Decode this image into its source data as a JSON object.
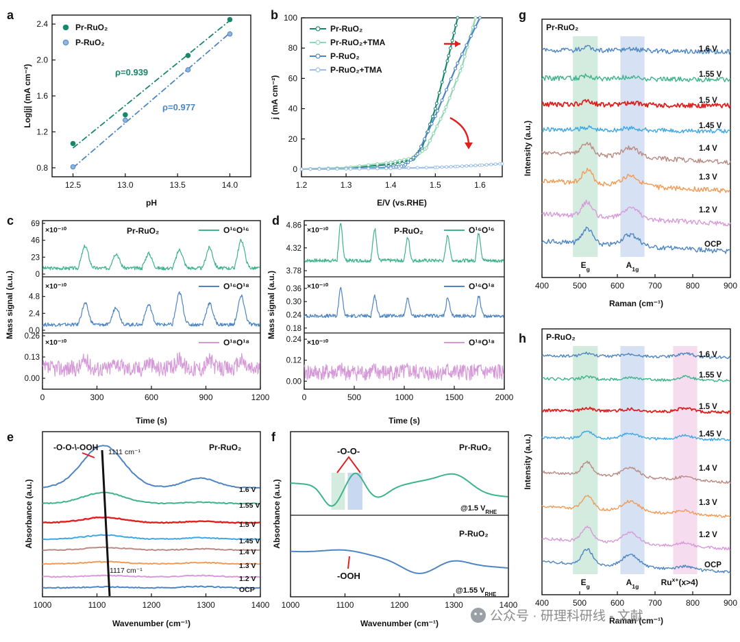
{
  "watermark": "公众号 · 研理科研线 - 文献",
  "colors": {
    "green": "#3cb38a",
    "green_dark": "#17876a",
    "green_light": "#8fd6b3",
    "blue": "#4c84c4",
    "blue_light": "#9dbfe6",
    "red": "#e0201f",
    "sky": "#3ca7e6",
    "brown": "#b98a83",
    "orange": "#f29a55",
    "pink": "#d79ad9",
    "band_green": "#d4ecdf",
    "band_blue": "#d6e2f3",
    "band_pink": "#f6dcef"
  },
  "chart_data": [
    {
      "id": "a",
      "type": "scatter",
      "panel_label": "a",
      "xlabel": "pH",
      "ylabel": "Log|j| (mA cm⁻²)",
      "xlim": [
        12.3,
        14.2
      ],
      "ylim": [
        0.7,
        2.5
      ],
      "xticks": [
        12.5,
        13.0,
        13.5,
        14.0
      ],
      "yticks": [
        0.8,
        1.2,
        1.6,
        2.0,
        2.4
      ],
      "xtick_labels": [
        "12.5",
        "13.0",
        "13.5",
        "14.0"
      ],
      "ytick_labels": [
        "0.8",
        "1.2",
        "1.6",
        "2.0",
        "2.4"
      ],
      "series": [
        {
          "name": "Pr-RuO₂",
          "color": "green_dark",
          "x": [
            12.5,
            13.0,
            13.6,
            14.0
          ],
          "y": [
            1.07,
            1.39,
            2.05,
            2.45
          ],
          "fit": [
            [
              12.5,
              1.02
            ],
            [
              14.0,
              2.44
            ]
          ]
        },
        {
          "name": "P-RuO₂",
          "color": "blue",
          "x": [
            12.5,
            13.0,
            13.6,
            14.0
          ],
          "y": [
            0.81,
            1.33,
            1.89,
            2.29
          ],
          "fit": [
            [
              12.5,
              0.8
            ],
            [
              14.0,
              2.3
            ]
          ]
        }
      ],
      "annotations": [
        {
          "text": "ρ=0.939",
          "color": "green_dark"
        },
        {
          "text": "ρ=0.977",
          "color": "blue"
        }
      ]
    },
    {
      "id": "b",
      "type": "line",
      "panel_label": "b",
      "xlabel": "E/V (vs.RHE)",
      "ylabel": "j (mA cm⁻²)",
      "xlim": [
        1.2,
        1.65
      ],
      "ylim": [
        -5,
        100
      ],
      "xticks": [
        1.2,
        1.3,
        1.4,
        1.5,
        1.6
      ],
      "yticks": [
        0,
        20,
        40,
        60,
        80,
        100
      ],
      "xtick_labels": [
        "1.2",
        "1.3",
        "1.4",
        "1.5",
        "1.6"
      ],
      "ytick_labels": [
        "0",
        "20",
        "40",
        "60",
        "80",
        "100"
      ],
      "series": [
        {
          "name": "Pr-RuO₂",
          "color": "green_dark",
          "x": [
            1.2,
            1.3,
            1.4,
            1.45,
            1.47,
            1.5,
            1.53,
            1.55
          ],
          "y": [
            0,
            0.8,
            3.2,
            6.5,
            14,
            40,
            75,
            100
          ]
        },
        {
          "name": "Pr-RuO₂+TMA",
          "color": "green_light",
          "x": [
            1.2,
            1.3,
            1.4,
            1.45,
            1.48,
            1.52,
            1.56,
            1.59
          ],
          "y": [
            0,
            1,
            4.5,
            7.5,
            14,
            38,
            68,
            100
          ]
        },
        {
          "name": "P-RuO₂",
          "color": "blue",
          "x": [
            1.2,
            1.3,
            1.4,
            1.43,
            1.46,
            1.5,
            1.55,
            1.6
          ],
          "y": [
            0,
            0.3,
            1.2,
            2.2,
            10,
            35,
            70,
            100
          ]
        },
        {
          "name": "P-RuO₂+TMA",
          "color": "blue_light",
          "x": [
            1.2,
            1.3,
            1.4,
            1.5,
            1.55,
            1.6,
            1.65
          ],
          "y": [
            0,
            0.2,
            0.5,
            1.2,
            1.8,
            2.6,
            3.6
          ]
        }
      ]
    },
    {
      "id": "c",
      "type": "line",
      "panel_label": "c",
      "xlabel": "Time (s)",
      "ylabel": "Mass signal (a.u.)",
      "xlim": [
        0,
        1200
      ],
      "xticks": [
        0,
        300,
        600,
        900,
        1200
      ],
      "xtick_labels": [
        "0",
        "300",
        "600",
        "900",
        "1200"
      ],
      "title": "Pr-RuO₂",
      "peaks": [
        230,
        400,
        580,
        750,
        915,
        1090
      ],
      "subplots": [
        {
          "name": "O¹⁶O¹⁶",
          "scale": "×10⁻¹⁰",
          "color": "green",
          "ylim": [
            0,
            69
          ],
          "yticks": [
            0,
            23,
            46,
            69
          ],
          "ytick_labels": [
            "0",
            "23",
            "46",
            "69"
          ],
          "baseline": 8,
          "amplitudes": [
            30,
            20,
            20,
            25,
            28,
            38
          ]
        },
        {
          "name": "O¹⁶O¹⁸",
          "scale": "×10⁻¹⁰",
          "color": "blue",
          "ylim": [
            0,
            7.2
          ],
          "yticks": [
            0,
            2.4,
            4.8
          ],
          "ytick_labels": [
            "0.0",
            "2.4",
            "4.8"
          ],
          "baseline": 0.8,
          "amplitudes": [
            3,
            2.5,
            2.8,
            4.5,
            3.0,
            4.0
          ]
        },
        {
          "name": "O¹⁸O¹⁸",
          "scale": "×10⁻¹⁰",
          "color": "pink",
          "ylim": [
            -0.05,
            0.26
          ],
          "yticks": [
            0,
            0.13,
            0.26
          ],
          "ytick_labels": [
            "0.00",
            "0.13",
            "0.26"
          ],
          "baseline": 0.06,
          "amplitudes": [
            0.05,
            0.04,
            0.04,
            0.06,
            0.05,
            0.05
          ]
        }
      ]
    },
    {
      "id": "d",
      "type": "line",
      "panel_label": "d",
      "xlabel": "Time (s)",
      "ylabel": "Mass signal (a.u.)",
      "xlim": [
        0,
        2000
      ],
      "xticks": [
        0,
        500,
        1000,
        1500,
        2000
      ],
      "xtick_labels": [
        "0",
        "500",
        "1000",
        "1500",
        "2000"
      ],
      "title": "P-RuO₂",
      "peaks": [
        360,
        700,
        1030,
        1430,
        1740
      ],
      "subplots": [
        {
          "name": "O¹⁶O¹⁶",
          "scale": "×10⁻¹⁰",
          "color": "green",
          "ylim": [
            3.7,
            4.9
          ],
          "yticks": [
            3.78,
            4.32,
            4.86
          ],
          "ytick_labels": [
            "3.78",
            "4.32",
            "4.86"
          ],
          "extra_ticks": [
            "4.05",
            "4.59"
          ],
          "baseline": 4.02,
          "amplitudes": [
            0.85,
            0.75,
            0.55,
            0.6,
            0.65
          ]
        },
        {
          "name": "O¹⁶O¹⁸",
          "scale": "×10⁻¹⁰",
          "color": "blue",
          "ylim": [
            0.17,
            0.4
          ],
          "yticks": [
            0.18,
            0.24,
            0.3,
            0.36
          ],
          "ytick_labels": [
            "0.18",
            "0.24",
            "0.30",
            "0.36"
          ],
          "baseline": 0.235,
          "amplitudes": [
            0.13,
            0.09,
            0.08,
            0.08,
            0.09
          ]
        },
        {
          "name": "O¹⁸O¹⁸",
          "scale": "×10⁻¹⁰",
          "color": "pink",
          "ylim": [
            -0.03,
            0.26
          ],
          "yticks": [
            0,
            0.12,
            0.24
          ],
          "ytick_labels": [
            "0.00",
            "0.12",
            "0.24"
          ],
          "extra_ticks": [
            "0.06",
            "0.18"
          ],
          "baseline": 0.05,
          "amplitudes": [
            0.01,
            0.01,
            0.01,
            0.01,
            0.01
          ]
        }
      ]
    },
    {
      "id": "e",
      "type": "line",
      "panel_label": "e",
      "xlabel": "Wavenumber (cm⁻¹)",
      "ylabel": "Absorbance (a.u.)",
      "xlim": [
        1000,
        1400
      ],
      "xticks": [
        1000,
        1100,
        1200,
        1300,
        1400
      ],
      "xtick_labels": [
        "1000",
        "1100",
        "1200",
        "1300",
        "1400"
      ],
      "title": "Pr-RuO₂",
      "curves": [
        {
          "label": "1.6 V",
          "color": "blue"
        },
        {
          "label": "1.55 V",
          "color": "green"
        },
        {
          "label": "1.5 V",
          "color": "red"
        },
        {
          "label": "1.45 V",
          "color": "sky"
        },
        {
          "label": "1.4 V",
          "color": "brown"
        },
        {
          "label": "1.3 V",
          "color": "orange"
        },
        {
          "label": "1.2 V",
          "color": "pink"
        },
        {
          "label": "OCP",
          "color": "blue"
        }
      ],
      "annotations": [
        "-O-O-\\-OOH",
        "1111 cm⁻¹",
        "1117 cm⁻¹"
      ]
    },
    {
      "id": "f",
      "type": "line",
      "panel_label": "f",
      "xlabel": "Wavenumber (cm⁻¹)",
      "ylabel": "Absorbance (a.u.)",
      "xlim": [
        1000,
        1400
      ],
      "xticks": [
        1000,
        1100,
        1200,
        1300,
        1400
      ],
      "xtick_labels": [
        "1000",
        "1100",
        "1200",
        "1300",
        "1400"
      ],
      "top": {
        "title": "Pr-RuO₂",
        "potential": "@1.5 V",
        "sub": "RHE",
        "note": "-O-O-",
        "color": "green"
      },
      "bottom": {
        "title": "P-RuO₂",
        "potential": "@1.55 V",
        "sub": "RHE",
        "note": "-OOH",
        "color": "blue"
      }
    },
    {
      "id": "g",
      "type": "line",
      "panel_label": "g",
      "xlabel": "Raman (cm⁻¹)",
      "ylabel": "Intensity (a.u.)",
      "xlim": [
        400,
        900
      ],
      "xticks": [
        400,
        500,
        600,
        700,
        800,
        900
      ],
      "xtick_labels": [
        "400",
        "500",
        "600",
        "700",
        "800",
        "900"
      ],
      "title": "Pr-RuO₂",
      "bands": [
        "E",
        "A"
      ],
      "band_subs": [
        "g",
        "1g"
      ],
      "curves": [
        {
          "label": "1.6 V",
          "color": "blue"
        },
        {
          "label": "1.55 V",
          "color": "green"
        },
        {
          "label": "1.5 V",
          "color": "red"
        },
        {
          "label": "1.45 V",
          "color": "sky"
        },
        {
          "label": "1.4 V",
          "color": "brown"
        },
        {
          "label": "1.3 V",
          "color": "orange"
        },
        {
          "label": "1.2 V",
          "color": "pink"
        },
        {
          "label": "OCP",
          "color": "blue"
        }
      ]
    },
    {
      "id": "h",
      "type": "line",
      "panel_label": "h",
      "xlabel": "Raman (cm⁻¹)",
      "ylabel": "Intensity (a.u.)",
      "xlim": [
        400,
        900
      ],
      "xticks": [
        400,
        500,
        600,
        700,
        800,
        900
      ],
      "xtick_labels": [
        "400",
        "500",
        "600",
        "700",
        "800",
        "900"
      ],
      "title": "P-RuO₂",
      "bands": [
        "E",
        "A",
        "Ru"
      ],
      "band_subs": [
        "g",
        "1g",
        ""
      ],
      "band_sups": [
        "",
        "",
        "x+"
      ],
      "band_tail": "(x>4)",
      "curves": [
        {
          "label": "1.6 V",
          "color": "blue"
        },
        {
          "label": "1.55 V",
          "color": "green"
        },
        {
          "label": "1.5 V",
          "color": "red"
        },
        {
          "label": "1.45 V",
          "color": "sky"
        },
        {
          "label": "1.4 V",
          "color": "brown"
        },
        {
          "label": "1.3 V",
          "color": "orange"
        },
        {
          "label": "1.2 V",
          "color": "pink"
        },
        {
          "label": "OCP",
          "color": "blue"
        }
      ]
    }
  ]
}
